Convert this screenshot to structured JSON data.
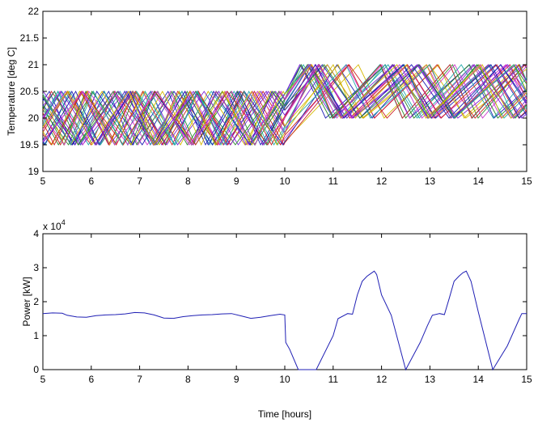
{
  "chart_data": [
    {
      "type": "line",
      "ylabel": "Temperature [deg C]",
      "xlabel": "",
      "xlim": [
        5,
        15
      ],
      "ylim": [
        19,
        22
      ],
      "xticks": [
        "5",
        "6",
        "7",
        "8",
        "9",
        "10",
        "11",
        "12",
        "13",
        "14",
        "15"
      ],
      "yticks": [
        "19",
        "19.5",
        "20",
        "20.5",
        "21",
        "21.5",
        "22"
      ],
      "colors": [
        "#cc2222",
        "#2b8a2b",
        "#1f1fb4",
        "#7b22d6",
        "#22aaaa",
        "#d4b800",
        "#cc33cc"
      ],
      "band_phase1": [
        19.5,
        20.5
      ],
      "band_phase2": [
        20,
        21
      ],
      "switch_time": 10,
      "series_count": 35,
      "grid": false
    },
    {
      "type": "line",
      "ylabel": "Power [kW]",
      "xlabel": "Time [hours]",
      "xlim": [
        5,
        15
      ],
      "ylim": [
        0,
        40000
      ],
      "xticks": [
        "5",
        "6",
        "7",
        "8",
        "9",
        "10",
        "11",
        "12",
        "13",
        "14",
        "15"
      ],
      "yticks": [
        "0",
        "1",
        "2",
        "3",
        "4"
      ],
      "exponent_label": "x 10",
      "exponent_power": "4",
      "color": "#1f1fb4",
      "grid": false,
      "series": [
        {
          "x": [
            5.0,
            5.2,
            5.4,
            5.5,
            5.7,
            5.9,
            6.1,
            6.3,
            6.5,
            6.7,
            6.9,
            7.1,
            7.3,
            7.5,
            7.7,
            7.9,
            8.1,
            8.3,
            8.5,
            8.7,
            8.9,
            9.1,
            9.3,
            9.5,
            9.7,
            9.9,
            10.0,
            10.02,
            10.1,
            10.28,
            10.65,
            11.0,
            11.1,
            11.3,
            11.4,
            11.5,
            11.6,
            11.7,
            11.8,
            11.85,
            11.9,
            12.0,
            12.2,
            12.5,
            12.8,
            12.95,
            13.05,
            13.2,
            13.3,
            13.4,
            13.5,
            13.6,
            13.68,
            13.75,
            13.85,
            14.0,
            14.3,
            14.6,
            14.85,
            14.9,
            15.0
          ],
          "y": [
            16500,
            16700,
            16600,
            16000,
            15500,
            15400,
            15900,
            16100,
            16200,
            16400,
            16800,
            16700,
            16100,
            15200,
            15100,
            15600,
            15900,
            16100,
            16200,
            16400,
            16500,
            15800,
            15100,
            15400,
            15900,
            16300,
            16100,
            8000,
            6000,
            0,
            0,
            10000,
            15000,
            16500,
            16300,
            22000,
            26000,
            27500,
            28500,
            29000,
            28000,
            22000,
            16000,
            0,
            8000,
            13000,
            16000,
            16500,
            16200,
            21000,
            26000,
            27500,
            28500,
            29000,
            26000,
            17000,
            0,
            7000,
            15000,
            16500,
            16500
          ]
        }
      ]
    }
  ]
}
